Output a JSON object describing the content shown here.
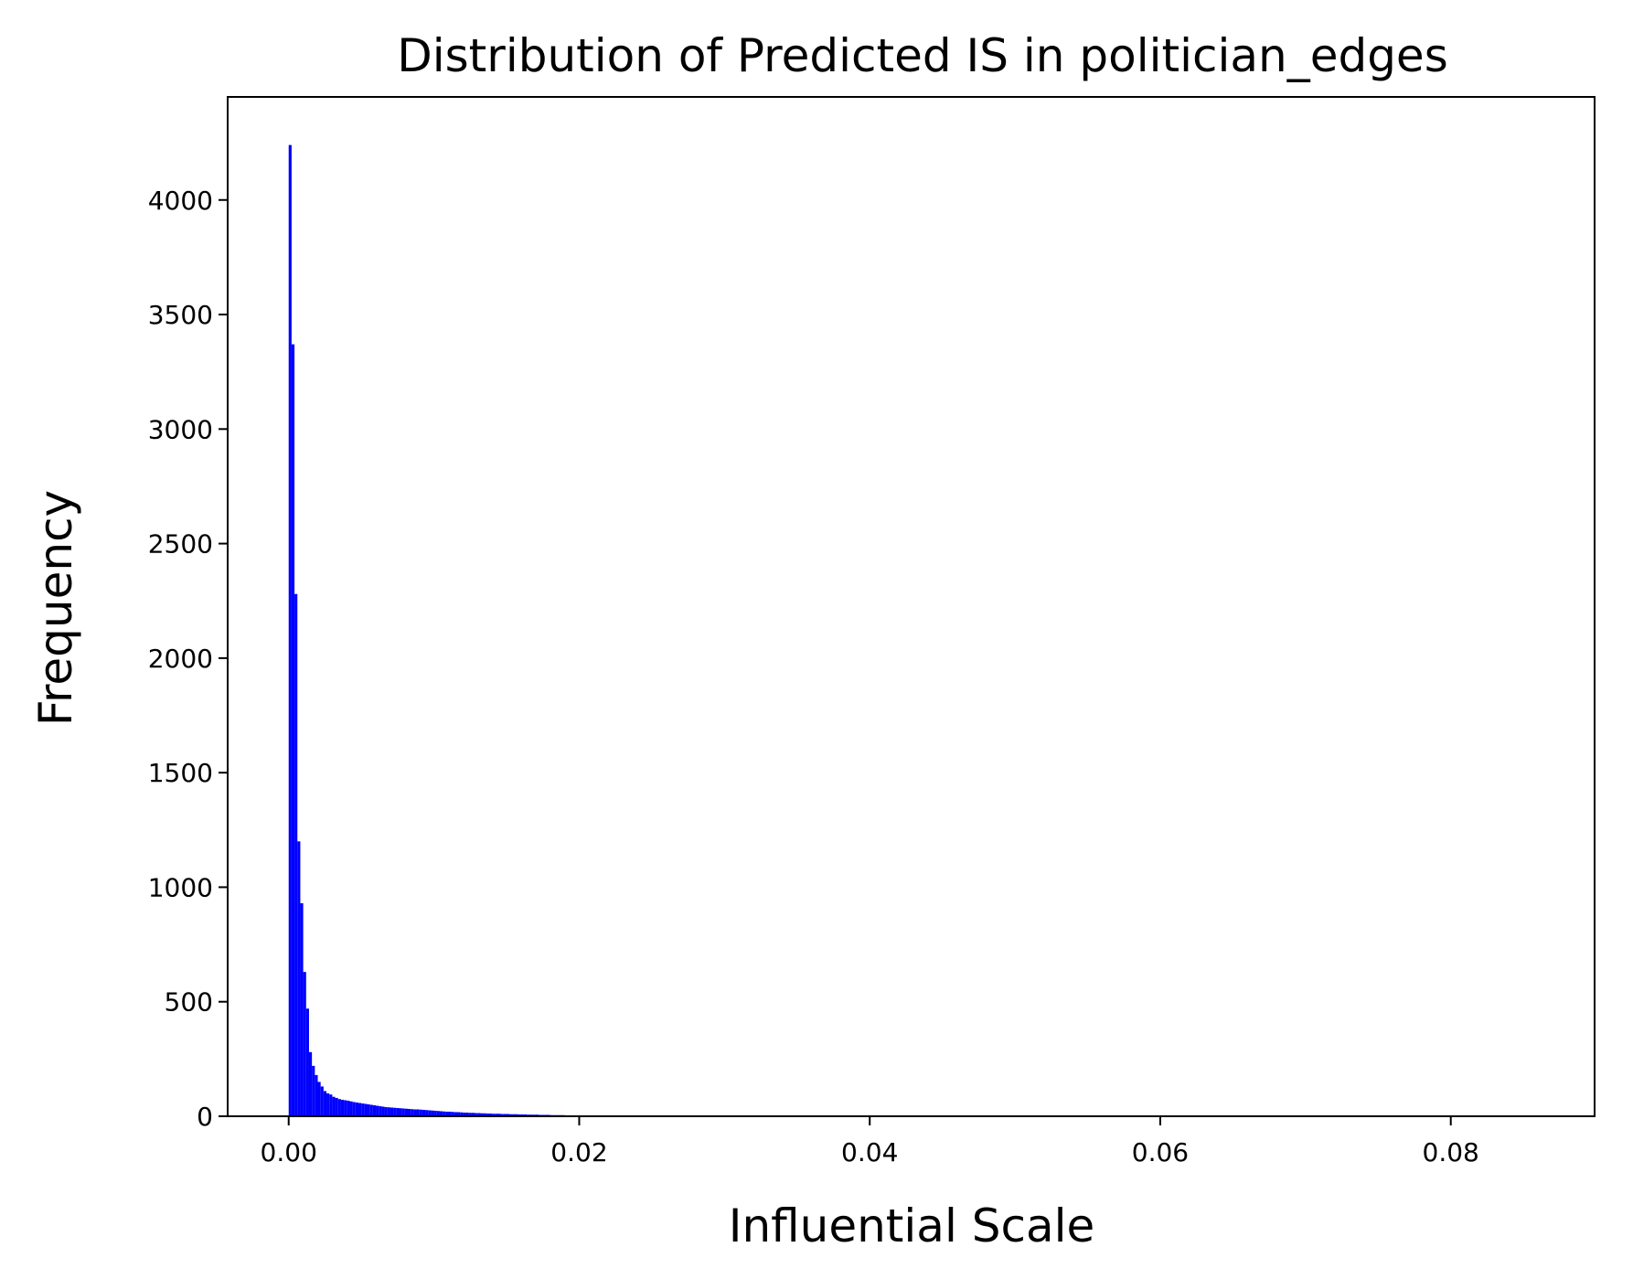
{
  "chart_data": {
    "type": "bar",
    "title": "Distribution of Predicted IS in politician_edges",
    "xlabel": "Influential Scale",
    "ylabel": "Frequency",
    "xlim": [
      -0.0042,
      0.0899
    ],
    "ylim": [
      0,
      4450
    ],
    "grid": false,
    "bar_color": "#0000ff",
    "bin_width": 0.0002,
    "bin_start": 0.0,
    "values": [
      4240,
      3370,
      2280,
      1200,
      930,
      630,
      470,
      280,
      220,
      180,
      150,
      130,
      110,
      100,
      95,
      85,
      80,
      75,
      72,
      70,
      68,
      65,
      62,
      60,
      58,
      56,
      54,
      52,
      50,
      48,
      46,
      44,
      42,
      40,
      39,
      38,
      37,
      36,
      35,
      34,
      33,
      32,
      31,
      30,
      30,
      29,
      28,
      27,
      26,
      25,
      24,
      23,
      22,
      21,
      20,
      20,
      19,
      18,
      18,
      17,
      16,
      16,
      15,
      15,
      14,
      14,
      13,
      13,
      12,
      12,
      11,
      11,
      11,
      10,
      10,
      10,
      9,
      9,
      9,
      8,
      8,
      8,
      7,
      7,
      7,
      7,
      6,
      6,
      6,
      6,
      5,
      5,
      5,
      5,
      5,
      4,
      4,
      4,
      4,
      4,
      3,
      3,
      3,
      3,
      2
    ],
    "x_ticks": [
      {
        "value": 0.0,
        "label": "0.00"
      },
      {
        "value": 0.02,
        "label": "0.02"
      },
      {
        "value": 0.04,
        "label": "0.04"
      },
      {
        "value": 0.06,
        "label": "0.06"
      },
      {
        "value": 0.08,
        "label": "0.08"
      }
    ],
    "y_ticks": [
      {
        "value": 0,
        "label": "0"
      },
      {
        "value": 500,
        "label": "500"
      },
      {
        "value": 1000,
        "label": "1000"
      },
      {
        "value": 1500,
        "label": "1500"
      },
      {
        "value": 2000,
        "label": "2000"
      },
      {
        "value": 2500,
        "label": "2500"
      },
      {
        "value": 3000,
        "label": "3000"
      },
      {
        "value": 3500,
        "label": "3500"
      },
      {
        "value": 4000,
        "label": "4000"
      }
    ]
  }
}
